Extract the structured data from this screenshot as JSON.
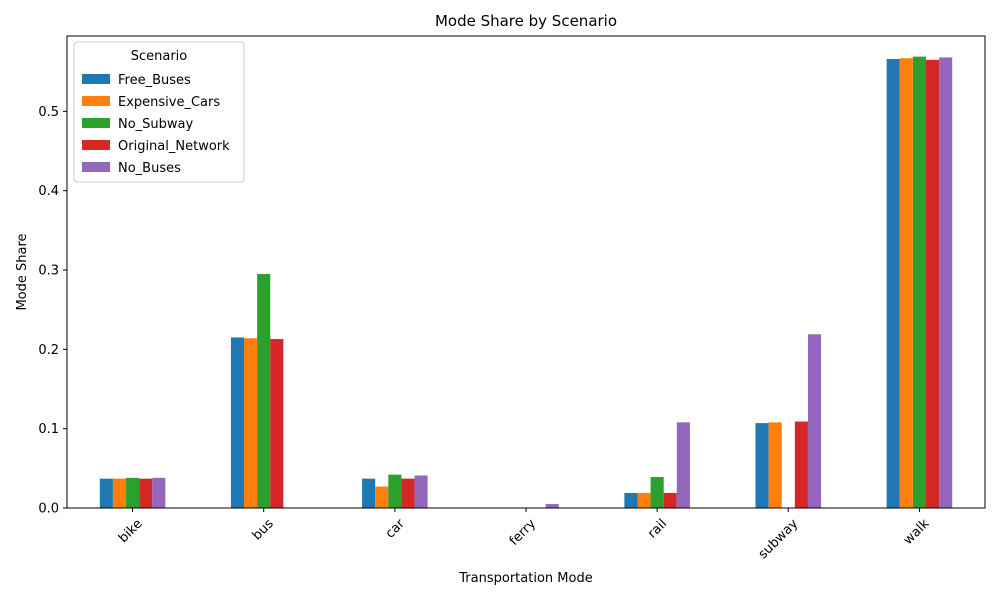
{
  "chart_data": {
    "type": "bar",
    "title": "Mode Share by Scenario",
    "xlabel": "Transportation Mode",
    "ylabel": "Mode Share",
    "categories": [
      "bike",
      "bus",
      "car",
      "ferry",
      "rail",
      "subway",
      "walk"
    ],
    "ylim": [
      0,
      0.595
    ],
    "yticks": [
      0.0,
      0.1,
      0.2,
      0.3,
      0.4,
      0.5
    ],
    "ytick_labels": [
      "0.0",
      "0.1",
      "0.2",
      "0.3",
      "0.4",
      "0.5"
    ],
    "grid": false,
    "legend": {
      "title": "Scenario",
      "placement": "top-left"
    },
    "series": [
      {
        "name": "Free_Buses",
        "color": "#1f77b4",
        "values": [
          0.037,
          0.215,
          0.037,
          0.0,
          0.019,
          0.107,
          0.566
        ]
      },
      {
        "name": "Expensive_Cars",
        "color": "#ff7f0e",
        "values": [
          0.037,
          0.214,
          0.027,
          0.0,
          0.019,
          0.108,
          0.567
        ]
      },
      {
        "name": "No_Subway",
        "color": "#2ca02c",
        "values": [
          0.038,
          0.295,
          0.042,
          0.0,
          0.039,
          0.0,
          0.569
        ]
      },
      {
        "name": "Original_Network",
        "color": "#d62728",
        "values": [
          0.037,
          0.213,
          0.037,
          0.0,
          0.019,
          0.109,
          0.565
        ]
      },
      {
        "name": "No_Buses",
        "color": "#9467bd",
        "values": [
          0.038,
          0.0,
          0.041,
          0.005,
          0.108,
          0.219,
          0.568
        ]
      }
    ]
  }
}
